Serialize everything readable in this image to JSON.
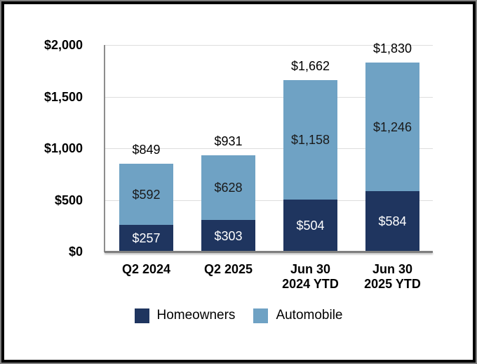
{
  "chart_data": {
    "type": "bar",
    "stacked": true,
    "title": "",
    "categories": [
      {
        "lines": [
          "Q2 2024"
        ]
      },
      {
        "lines": [
          "Q2 2025"
        ]
      },
      {
        "lines": [
          "Jun 30",
          "2024 YTD"
        ]
      },
      {
        "lines": [
          "Jun 30",
          "2025 YTD"
        ]
      }
    ],
    "series": [
      {
        "name": "Homeowners",
        "color": "#1F355F",
        "label_color": "#FFFFFF",
        "values": [
          257,
          303,
          504,
          584
        ],
        "labels": [
          "$257",
          "$303",
          "$504",
          "$584"
        ]
      },
      {
        "name": "Automobile",
        "color": "#6FA2C4",
        "label_color": "#1A1A1A",
        "values": [
          592,
          628,
          1158,
          1246
        ],
        "labels": [
          "$592",
          "$628",
          "$1,158",
          "$1,246"
        ]
      }
    ],
    "totals": {
      "values": [
        849,
        931,
        1662,
        1830
      ],
      "labels": [
        "$849",
        "$931",
        "$1,662",
        "$1,830"
      ]
    },
    "y_axis": {
      "ticks": [
        0,
        500,
        1000,
        1500,
        2000
      ],
      "tick_labels": [
        "$0",
        "$500",
        "$1,000",
        "$1,500",
        "$2,000"
      ],
      "range": [
        0,
        2000
      ]
    },
    "grid": true,
    "legend_position": "bottom"
  },
  "colors": {
    "homeowners": "#1F355F",
    "automobile": "#6FA2C4",
    "gridline": "#DDDDDD",
    "axis_line": "#8C8C8C",
    "baseline": "#7F7F7F",
    "text": "#000000",
    "frame_black": "#000000",
    "frame_gray": "#7F7F7F",
    "background": "#FFFFFF"
  }
}
